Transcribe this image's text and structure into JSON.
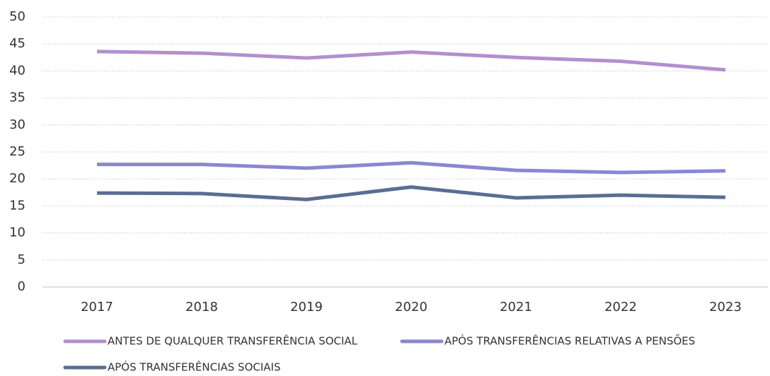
{
  "chart_data": {
    "type": "line",
    "categories": [
      "2017",
      "2018",
      "2019",
      "2020",
      "2021",
      "2022",
      "2023"
    ],
    "series": [
      {
        "name": "ANTES DE QUALQUER TRANSFERÊNCIA SOCIAL",
        "color": "#b28fd0",
        "values": [
          43.6,
          43.3,
          42.4,
          43.5,
          42.5,
          41.8,
          40.2
        ]
      },
      {
        "name": "APÓS TRANSFERÊNCIAS RELATIVAS A PENSÕES",
        "color": "#8a87d2",
        "values": [
          22.7,
          22.7,
          22.0,
          23.0,
          21.6,
          21.2,
          21.5
        ]
      },
      {
        "name": "APÓS TRANSFERÊNCIAS SOCIAIS",
        "color": "#5a6d93",
        "values": [
          17.4,
          17.3,
          16.2,
          18.5,
          16.5,
          17.0,
          16.6
        ]
      }
    ],
    "ylim": [
      0,
      50
    ],
    "yticks": [
      0,
      5,
      10,
      15,
      20,
      25,
      30,
      35,
      40,
      45,
      50
    ],
    "grid": true,
    "legend": "bottom"
  }
}
